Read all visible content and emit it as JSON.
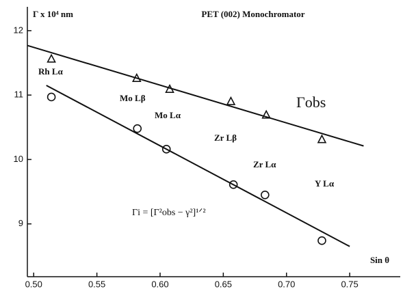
{
  "chart_data": {
    "type": "scatter",
    "title": "PET (002) Monochromator",
    "y_label": "Γ x 10⁴ nm",
    "x_label": "Sin θ",
    "color": "#111111",
    "xlim": [
      0.495,
      0.79
    ],
    "ylim": [
      8.18,
      12.37
    ],
    "xticks": [
      {
        "value": 0.5,
        "label": "0.50"
      },
      {
        "value": 0.55,
        "label": "0.55"
      },
      {
        "value": 0.6,
        "label": "0.60"
      },
      {
        "value": 0.65,
        "label": "0.65"
      },
      {
        "value": 0.7,
        "label": "0.70"
      },
      {
        "value": 0.75,
        "label": "0.75"
      }
    ],
    "yticks": [
      9,
      10,
      11,
      12
    ],
    "series": [
      {
        "marker": "triangle",
        "x": [
          0.514,
          0.5815,
          0.6076,
          0.656,
          0.684,
          0.728
        ],
        "values": [
          11.56,
          11.26,
          11.09,
          10.9,
          10.69,
          10.31
        ]
      },
      {
        "marker": "circle",
        "x": [
          0.514,
          0.582,
          0.605,
          0.658,
          0.683,
          0.728
        ],
        "values": [
          10.97,
          10.48,
          10.16,
          9.61,
          9.45,
          8.74
        ]
      },
      {
        "marker": "none",
        "x": [
          0.495,
          0.761
        ],
        "values": [
          11.77,
          10.21
        ]
      },
      {
        "marker": "none",
        "x": [
          0.51,
          0.75
        ],
        "values": [
          11.15,
          8.65
        ]
      }
    ],
    "annotations": [
      "Rh Lα",
      "Mo Lβ",
      "Mo Lα",
      "Zr Lβ",
      "Zr Lα",
      "Y Lα",
      "Γobs",
      "Γi = [Γ²obs − γ²]¹ᐟ²"
    ]
  }
}
